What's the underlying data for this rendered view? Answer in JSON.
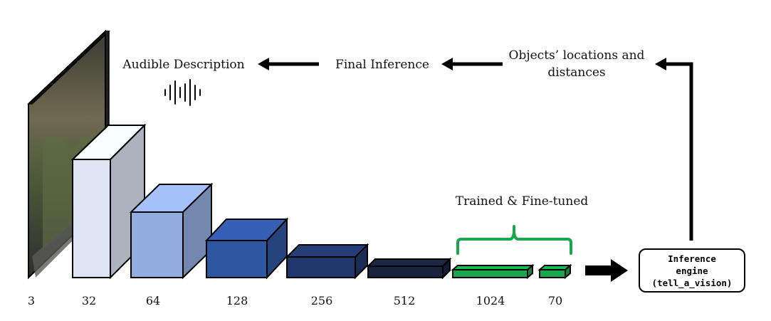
{
  "labels": {
    "audible": "Audible Description",
    "final": "Final Inference",
    "objects_line1": "Objects’ locations and",
    "objects_line2": "distances",
    "trained": "Trained & Fine-tuned"
  },
  "engine": {
    "line1": "Inference",
    "line2": "engine",
    "line3": "(tell_a_vision)"
  },
  "layers": [
    "3",
    "32",
    "64",
    "128",
    "256",
    "512",
    "1024",
    "70"
  ],
  "colors": {
    "green": "#1aa64a",
    "green_dark": "#0e7a33",
    "block32": "#dde5f5",
    "block64": "#93ade0",
    "block128": "#2f56a0",
    "block256": "#20386b",
    "block512": "#19233d"
  }
}
